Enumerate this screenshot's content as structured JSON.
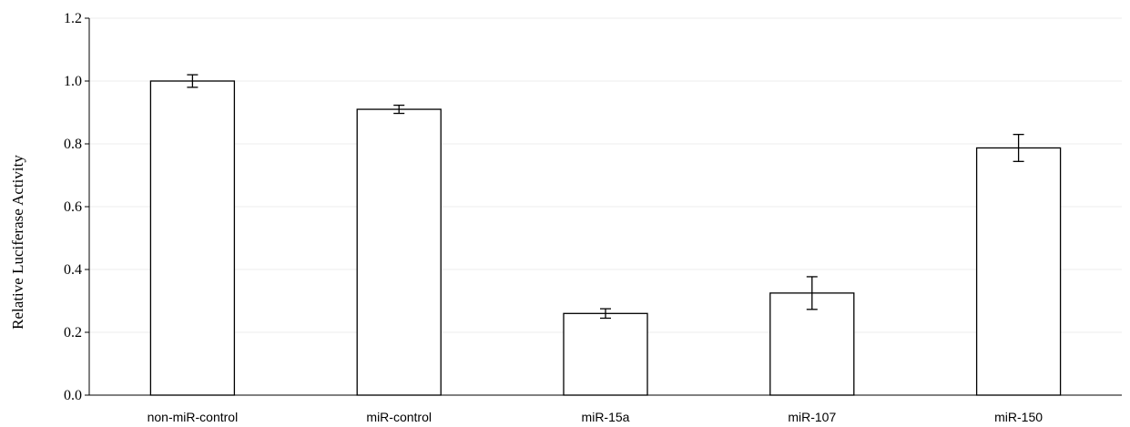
{
  "chart_data": {
    "type": "bar",
    "title": "",
    "xlabel": "",
    "ylabel": "Relative Luciferase Activity",
    "ylim": [
      0,
      1.2
    ],
    "yticks": [
      "0.0",
      "0.2",
      "0.4",
      "0.6",
      "0.8",
      "1.0",
      "1.2"
    ],
    "grid": true,
    "categories": [
      "non-miR-control",
      "miR-control",
      "miR-15a",
      "miR-107",
      "miR-150"
    ],
    "values": [
      1.0,
      0.91,
      0.26,
      0.325,
      0.787
    ],
    "errors": [
      0.02,
      0.013,
      0.015,
      0.052,
      0.043
    ],
    "colors": {
      "bar_fill": "#ffffff",
      "bar_stroke": "#000000",
      "grid": "#eeeeee"
    }
  }
}
